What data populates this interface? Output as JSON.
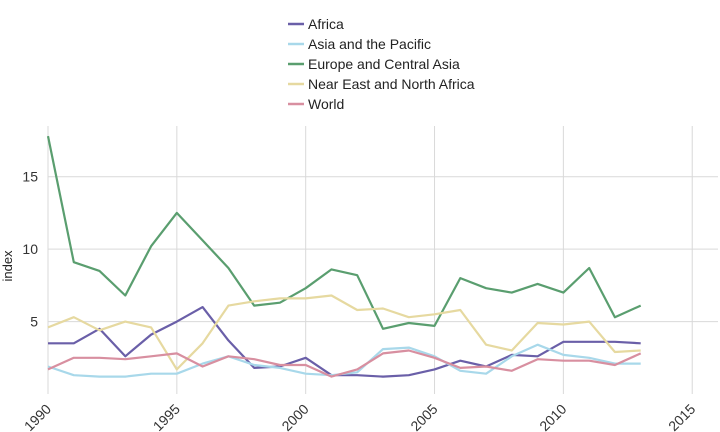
{
  "chart_data": {
    "type": "line",
    "title": "",
    "xlabel": "",
    "ylabel": "index",
    "xlim": [
      1990,
      2016
    ],
    "ylim": [
      0,
      18.5
    ],
    "x_ticks": [
      1990,
      1995,
      2000,
      2005,
      2010,
      2015
    ],
    "y_ticks": [
      5,
      10,
      15
    ],
    "grid": true,
    "legend_position": "top-center",
    "x": [
      1990,
      1991,
      1992,
      1993,
      1994,
      1995,
      1996,
      1997,
      1998,
      1999,
      2000,
      2001,
      2002,
      2003,
      2004,
      2005,
      2006,
      2007,
      2008,
      2009,
      2010,
      2011,
      2012,
      2013
    ],
    "series": [
      {
        "name": "Africa",
        "color": "#6a5fa8",
        "values": [
          3.5,
          3.5,
          4.5,
          2.6,
          4.1,
          5.0,
          6.0,
          3.7,
          1.8,
          1.9,
          2.5,
          1.3,
          1.3,
          1.2,
          1.3,
          1.7,
          2.3,
          1.9,
          2.7,
          2.6,
          3.6,
          3.6,
          3.6,
          3.5
        ]
      },
      {
        "name": "Asia and the Pacific",
        "color": "#a8d8ea",
        "values": [
          1.9,
          1.3,
          1.2,
          1.2,
          1.4,
          1.4,
          2.1,
          2.6,
          2.0,
          1.8,
          1.4,
          1.3,
          1.5,
          3.1,
          3.2,
          2.6,
          1.6,
          1.4,
          2.6,
          3.4,
          2.7,
          2.5,
          2.1,
          2.1
        ]
      },
      {
        "name": "Europe and Central Asia",
        "color": "#5a9e6f",
        "values": [
          17.8,
          9.1,
          8.5,
          6.8,
          10.2,
          12.5,
          10.6,
          8.7,
          6.1,
          6.3,
          7.3,
          8.6,
          8.2,
          4.5,
          4.9,
          4.7,
          8.0,
          7.3,
          7.0,
          7.6,
          7.0,
          8.7,
          5.3,
          6.1
        ]
      },
      {
        "name": "Near East and North Africa",
        "color": "#e6d9a0",
        "values": [
          4.6,
          5.3,
          4.4,
          5.0,
          4.6,
          1.7,
          3.5,
          6.1,
          6.4,
          6.6,
          6.6,
          6.8,
          5.8,
          5.9,
          5.3,
          5.5,
          5.8,
          3.4,
          3.0,
          4.9,
          4.8,
          5.0,
          2.9,
          3.0
        ]
      },
      {
        "name": "World",
        "color": "#d88fa0",
        "values": [
          1.7,
          2.5,
          2.5,
          2.4,
          2.6,
          2.8,
          1.9,
          2.6,
          2.4,
          2.0,
          2.0,
          1.2,
          1.7,
          2.8,
          3.0,
          2.5,
          1.8,
          1.9,
          1.6,
          2.4,
          2.3,
          2.3,
          2.0,
          2.8
        ]
      }
    ]
  }
}
